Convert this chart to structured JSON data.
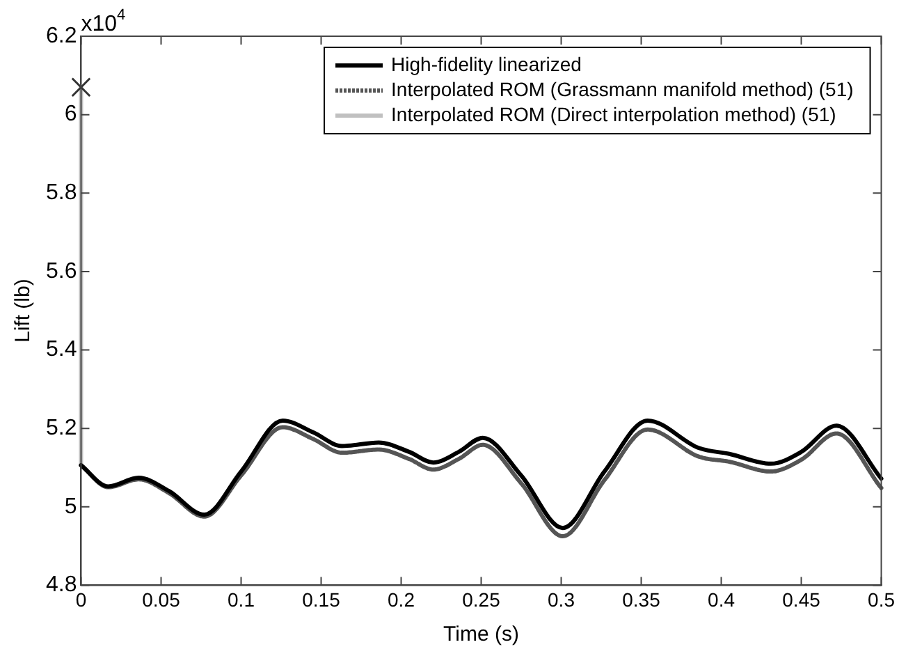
{
  "chart_data": {
    "type": "line",
    "xlabel": "Time (s)",
    "ylabel": "Lift (lb)",
    "annotations": [
      "x10$^{4}$"
    ],
    "xlim": [
      0,
      0.5
    ],
    "xticks": [
      0,
      0.05,
      0.1,
      0.15,
      0.2,
      0.25,
      0.3,
      0.35,
      0.4,
      0.45,
      0.5
    ],
    "ylim": [
      4.8,
      6.2
    ],
    "yticks": [
      4.8,
      5,
      5.2,
      5.4,
      5.6,
      5.8,
      6,
      6.2
    ],
    "grid": false,
    "legend": "top right",
    "series": [
      {
        "name": "High-fidelity linearized",
        "color": "#000000",
        "line_style": "solid",
        "x": [
          0,
          0.017,
          0.036,
          0.055,
          0.077,
          0.1,
          0.126,
          0.145,
          0.163,
          0.186,
          0.205,
          0.22,
          0.236,
          0.251,
          0.275,
          0.301,
          0.327,
          0.354,
          0.386,
          0.405,
          0.431,
          0.45,
          0.472,
          0.5
        ],
        "values": [
          5.106,
          5.052,
          5.074,
          5.04,
          4.98,
          5.09,
          5.22,
          5.19,
          5.155,
          5.164,
          5.14,
          5.113,
          5.14,
          5.176,
          5.08,
          4.946,
          5.09,
          5.22,
          5.15,
          5.135,
          5.11,
          5.14,
          5.207,
          5.072
        ]
      },
      {
        "name": "Interpolated ROM (Grassmann manifold method) (51)",
        "color": "#555555",
        "line_style": "dotted",
        "x": [
          0,
          0.017,
          0.036,
          0.055,
          0.077,
          0.1,
          0.126,
          0.145,
          0.163,
          0.186,
          0.205,
          0.22,
          0.236,
          0.251,
          0.275,
          0.301,
          0.327,
          0.354,
          0.386,
          0.405,
          0.431,
          0.45,
          0.472,
          0.5
        ],
        "values": [
          5.106,
          5.05,
          5.07,
          5.035,
          4.975,
          5.08,
          5.203,
          5.173,
          5.138,
          5.146,
          5.122,
          5.095,
          5.122,
          5.158,
          5.06,
          4.925,
          5.068,
          5.197,
          5.128,
          5.115,
          5.09,
          5.12,
          5.187,
          5.048
        ]
      },
      {
        "name": "Interpolated ROM (Direct interpolation method) (51)",
        "color": "#c0c0c0",
        "line_style": "solid",
        "marker": "cross",
        "x": [
          0,
          0
        ],
        "values": [
          6.07,
          5.106
        ]
      }
    ]
  }
}
